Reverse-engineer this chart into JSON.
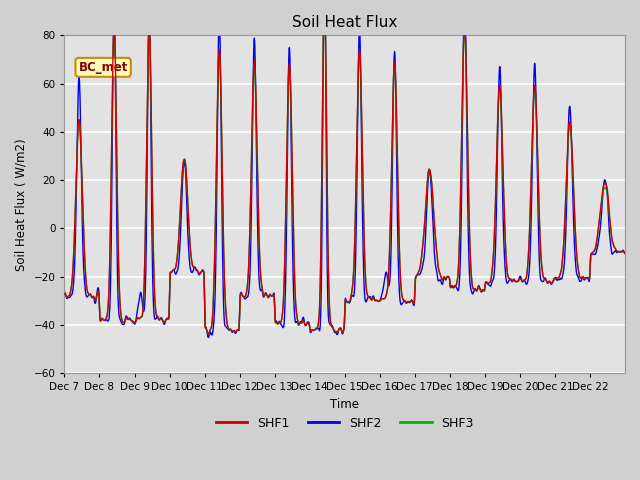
{
  "title": "Soil Heat Flux",
  "xlabel": "Time",
  "ylabel": "Soil Heat Flux ( W/m2)",
  "ylim": [
    -60,
    80
  ],
  "yticks": [
    -60,
    -40,
    -20,
    0,
    20,
    40,
    60,
    80
  ],
  "shf1_color": "#cc0000",
  "shf2_color": "#0000ee",
  "shf3_color": "#00bb00",
  "legend_labels": [
    "SHF1",
    "SHF2",
    "SHF3"
  ],
  "annotation": "BC_met",
  "bg_color": "#d8d8d8",
  "plot_bg_color": "#e0e0e0",
  "grid_color": "#f0f0f0",
  "xtick_labels": [
    "Dec 7",
    "Dec 8",
    "Dec 9",
    "Dec 10",
    "Dec 11",
    "Dec 12",
    "Dec 13",
    "Dec 14",
    "Dec 15",
    "Dec 16",
    "Dec 17",
    "Dec 18",
    "Dec 19",
    "Dec 20",
    "Dec 21",
    "Dec 22"
  ],
  "line_width": 1.0
}
